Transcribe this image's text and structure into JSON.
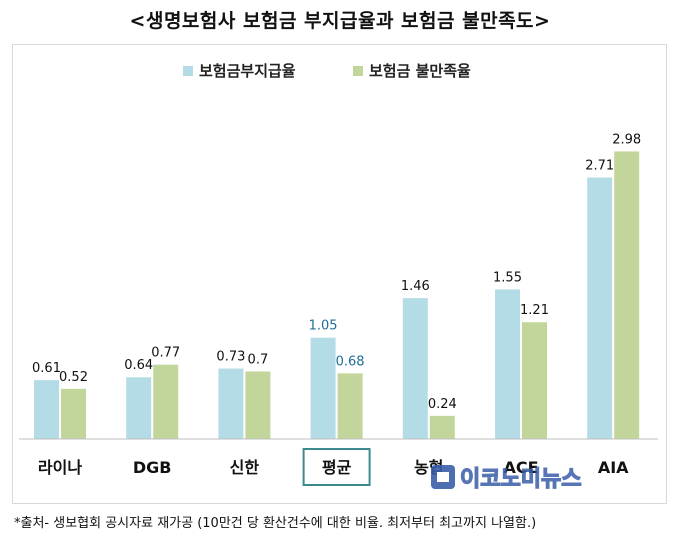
{
  "title": "<생명보험사 보험금 부지급율과 보험금 불만족도>",
  "footnote": "*출처- 생보협회 공시자료 재가공 (10만건 당 환산건수에 대한 비율. 최저부터 최고까지 나열함.)",
  "watermark": "이코노미뉴스",
  "colors": {
    "series1": "#b3dce6",
    "series2": "#c2d69b",
    "highlight_label": "#1f6e9a",
    "highlight_border": "#3d8a8e"
  },
  "chart_data": {
    "type": "bar",
    "categories": [
      "라이나",
      "DGB",
      "신한",
      "평균",
      "농협",
      "ACE",
      "AIA"
    ],
    "highlight_category": "평균",
    "series": [
      {
        "name": "보험금부지급율",
        "values": [
          0.61,
          0.64,
          0.73,
          1.05,
          1.46,
          1.55,
          2.71
        ]
      },
      {
        "name": "보험금 불만족율",
        "values": [
          0.52,
          0.77,
          0.7,
          0.68,
          0.24,
          1.21,
          2.98
        ]
      }
    ],
    "data_labels": [
      [
        "0.61",
        "0.64",
        "0.73",
        "1.05",
        "1.46",
        "1.55",
        "2.71"
      ],
      [
        "0.52",
        "0.77",
        "0.7",
        "0.68",
        "0.24",
        "1.21",
        "2.98"
      ]
    ],
    "ylim": [
      0,
      3.2
    ],
    "legend": "top-center",
    "grid": false
  }
}
